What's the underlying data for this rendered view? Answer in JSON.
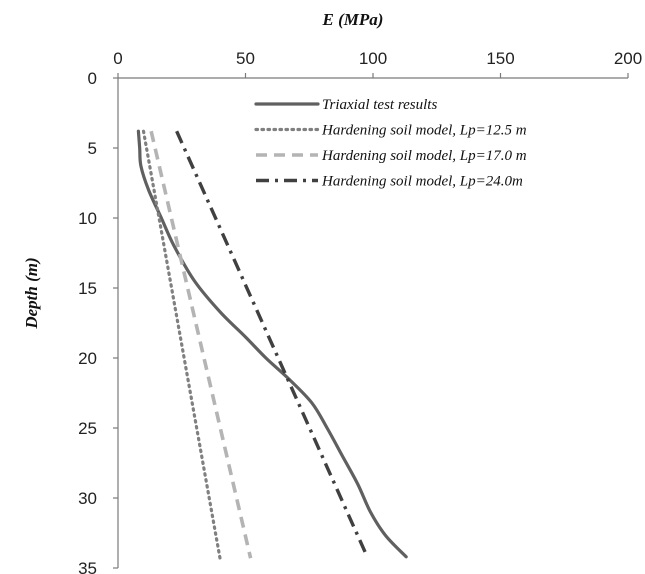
{
  "chart_data": {
    "type": "line",
    "xlabel": "E (MPa)",
    "ylabel": "Depth (m)",
    "xlim": [
      0,
      200
    ],
    "ylim": [
      0,
      35
    ],
    "x_axis_position": "top",
    "y_axis_inverted": true,
    "x_ticks": [
      "0",
      "50",
      "100",
      "150",
      "200"
    ],
    "y_ticks": [
      "0",
      "5",
      "10",
      "15",
      "20",
      "25",
      "30",
      "35"
    ],
    "grid": false,
    "legend_position": "top-right",
    "series": [
      {
        "name": "Triaxial test results",
        "style": "solid",
        "color": "#606060",
        "points": [
          [
            8,
            3.8
          ],
          [
            8.5,
            5
          ],
          [
            9,
            6.3
          ],
          [
            12,
            8
          ],
          [
            17,
            10
          ],
          [
            22,
            12
          ],
          [
            30,
            14.5
          ],
          [
            40,
            16.7
          ],
          [
            50,
            18.5
          ],
          [
            58,
            20
          ],
          [
            67,
            21.5
          ],
          [
            76,
            23.2
          ],
          [
            82,
            25
          ],
          [
            88,
            27
          ],
          [
            94,
            29
          ],
          [
            99,
            31
          ],
          [
            105,
            32.7
          ],
          [
            113,
            34.2
          ]
        ]
      },
      {
        "name": "Hardening soil model, Lp=12.5 m",
        "style": "dotted",
        "color": "#808080",
        "points": [
          [
            10,
            3.8
          ],
          [
            40,
            34.3
          ]
        ]
      },
      {
        "name": "Hardening soil model, Lp=17.0 m",
        "style": "dashed",
        "color": "#b4b4b4",
        "points": [
          [
            13,
            3.8
          ],
          [
            52,
            34.3
          ]
        ]
      },
      {
        "name": "Hardening soil model, Lp=24.0m",
        "style": "dash-dot",
        "color": "#404040",
        "points": [
          [
            23,
            3.8
          ],
          [
            97,
            33.9
          ]
        ]
      }
    ]
  }
}
